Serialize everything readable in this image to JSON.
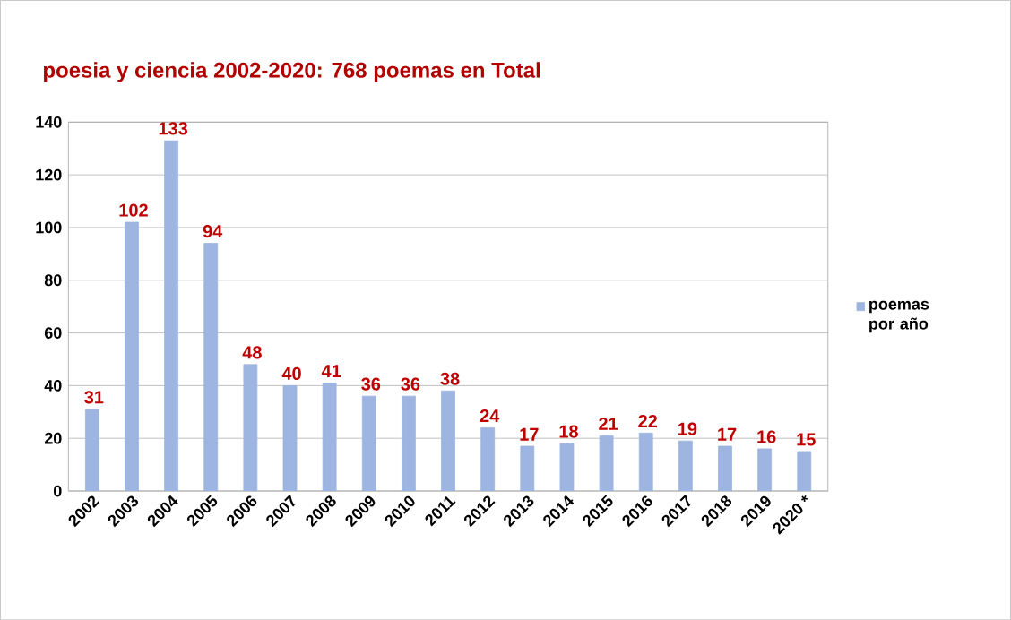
{
  "chart_data": {
    "type": "bar",
    "title": "poesia y ciencia 2002-2020: 768 poemas en Total",
    "categories": [
      "2002",
      "2003",
      "2004",
      "2005",
      "2006",
      "2007",
      "2008",
      "2009",
      "2010",
      "2011",
      "2012",
      "2013",
      "2014",
      "2015",
      "2016",
      "2017",
      "2018",
      "2019",
      "2020 *"
    ],
    "series": [
      {
        "name": "poemas por año",
        "color": "#9db5e0",
        "values": [
          31,
          102,
          133,
          94,
          48,
          40,
          41,
          36,
          36,
          38,
          24,
          17,
          18,
          21,
          22,
          19,
          17,
          16,
          15
        ]
      }
    ],
    "ylim": [
      0,
      140
    ],
    "yticks": [
      0,
      20,
      40,
      60,
      80,
      100,
      120,
      140
    ],
    "grid": "y",
    "legend": "right",
    "data_labels": true
  }
}
